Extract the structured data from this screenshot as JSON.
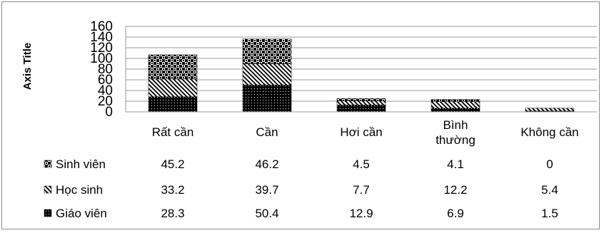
{
  "chart_data": {
    "type": "bar",
    "stacked": true,
    "ylabel": "Axis Title",
    "ylim": [
      0,
      160
    ],
    "yticks": [
      0,
      20,
      40,
      60,
      80,
      100,
      120,
      140,
      160
    ],
    "grid": true,
    "legend_placement": "data table below chart",
    "categories": [
      "Rất cần",
      "Cần",
      "Hơi cần",
      "Bình thường",
      "Không cần"
    ],
    "series": [
      {
        "name": "Giáo viên",
        "values": [
          28.3,
          50.4,
          12.9,
          6.9,
          1.5
        ],
        "pattern": "dense-dots"
      },
      {
        "name": "Học sinh",
        "values": [
          33.2,
          39.7,
          7.7,
          12.2,
          5.4
        ],
        "pattern": "diagonal-stripes"
      },
      {
        "name": "Sinh viên",
        "values": [
          45.2,
          46.2,
          4.5,
          4.1,
          0
        ],
        "pattern": "checkerboard"
      }
    ],
    "table_rows": [
      {
        "name": "Sinh viên",
        "values": [
          "45.2",
          "46.2",
          "4.5",
          "4.1",
          "0"
        ]
      },
      {
        "name": "Học sinh",
        "values": [
          "33.2",
          "39.7",
          "7.7",
          "12.2",
          "5.4"
        ]
      },
      {
        "name": "Giáo viên",
        "values": [
          "28.3",
          "50.4",
          "12.9",
          "6.9",
          "1.5"
        ]
      }
    ]
  }
}
